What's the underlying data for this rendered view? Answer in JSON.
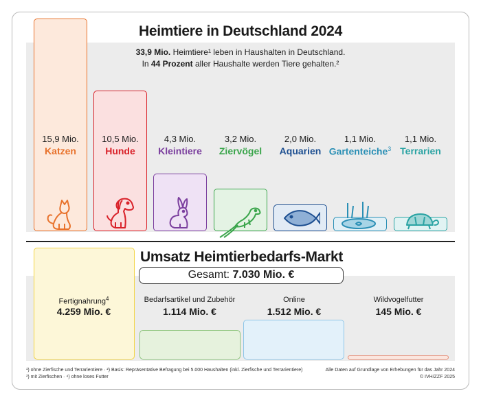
{
  "title": "Heimtiere in Deutschland 2024",
  "subtitle_line1": {
    "bold": "33,9 Mio.",
    "rest": " Heimtiere¹ leben in Haushalten in Deutschland."
  },
  "subtitle_line2": {
    "pre": "In ",
    "bold": "44 Prozent",
    "post": " aller Haushalte werden Tiere gehalten.²"
  },
  "colors": {
    "katzen": "#e8722c",
    "hunde": "#d9222a",
    "kleintiere": "#7b3f9e",
    "ziervoegel": "#3aa54b",
    "aquarien": "#1d4f91",
    "gartenteiche": "#2a8fb5",
    "terrarien": "#2aa3a3",
    "fertignahrung": "#f2d443",
    "bedarf": "#8cc47a",
    "online": "#8fc6e8",
    "wildvogel": "#e58a72"
  },
  "chart_data": [
    {
      "type": "bar",
      "title": "Heimtiere in Deutschland 2024",
      "categories": [
        "Katzen",
        "Hunde",
        "Kleintiere",
        "Ziervögel",
        "Aquarien",
        "Gartenteiche",
        "Terrarien"
      ],
      "values": [
        15.9,
        10.5,
        4.3,
        3.2,
        2.0,
        1.1,
        1.1
      ],
      "value_labels": [
        "15,9 Mio.",
        "10,5 Mio.",
        "4,3 Mio.",
        "3,2 Mio.",
        "2,0 Mio.",
        "1,1 Mio.",
        "1,1 Mio."
      ],
      "label_suffix": [
        "",
        "",
        "",
        "",
        "",
        "3",
        ""
      ],
      "icons": [
        "cat-icon",
        "dog-icon",
        "rabbit-icon",
        "parrot-icon",
        "fish-icon",
        "pond-icon",
        "turtle-icon"
      ],
      "ylim": [
        0,
        15.9
      ]
    },
    {
      "type": "bar",
      "title": "Umsatz Heimtierbedarfs-Markt",
      "total_label": "Gesamt: ",
      "total_value": "7.030 Mio. €",
      "categories": [
        "Fertignahrung",
        "Bedarfsartikel und Zubehör",
        "Online",
        "Wildvogelfutter"
      ],
      "label_suffix": [
        "4",
        "",
        "",
        ""
      ],
      "values": [
        4259,
        1114,
        1512,
        145
      ],
      "value_labels": [
        "4.259 Mio. €",
        "1.114 Mio. €",
        "1.512 Mio. €",
        "145 Mio. €"
      ],
      "ylim": [
        0,
        4259
      ]
    }
  ],
  "footnotes": {
    "left1": "¹) ohne Zierfische und Terrarientiere · ²) Basis: Repräsentative Befragung bei 5.000 Haushalten (inkl. Zierfische und Terrarientiere)",
    "left2": "³) mit Zierfischen · ⁴) ohne loses Futter",
    "right1": "Alle Daten auf Grundlage von Erhebungen für das Jahr 2024",
    "right2": "© IVH/ZZF 2025"
  }
}
